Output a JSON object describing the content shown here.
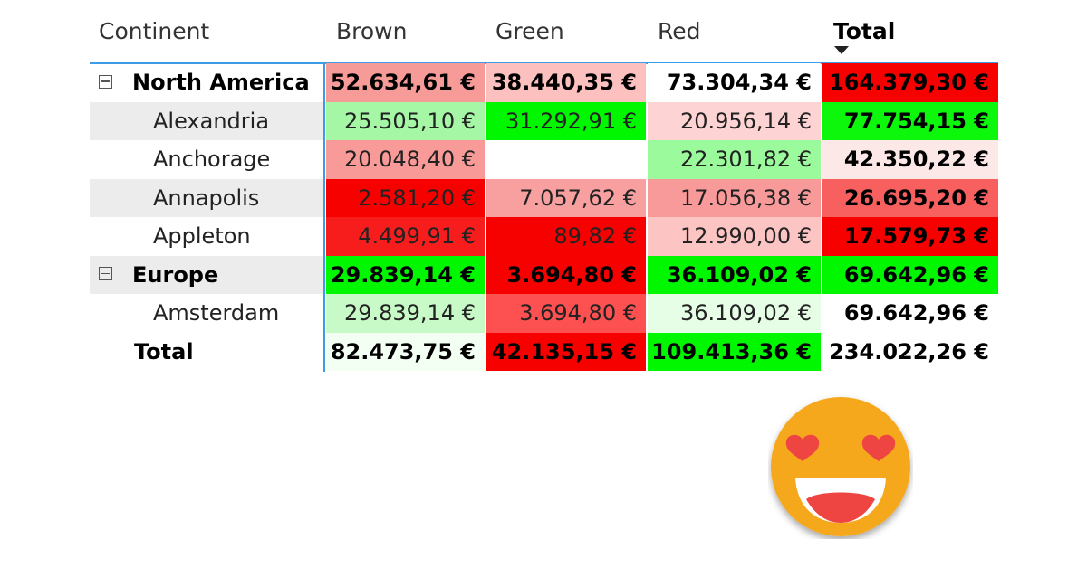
{
  "headers": {
    "continent": "Continent",
    "brown": "Brown",
    "green": "Green",
    "red": "Red",
    "total": "Total"
  },
  "rows": [
    {
      "label": "North America",
      "type": "group",
      "values": [
        "52.634,61 €",
        "38.440,35 €",
        "73.304,34 €",
        "164.379,30 €"
      ],
      "colors": [
        "#f79b99",
        "#fcc0bf",
        "#ffffff",
        "#f70000"
      ]
    },
    {
      "label": "Alexandria",
      "type": "child",
      "values": [
        "25.505,10 €",
        "31.292,91 €",
        "20.956,14 €",
        "77.754,15 €"
      ],
      "colors": [
        "#a5f7a5",
        "#00f700",
        "#fdd3d3",
        "#0df70d"
      ]
    },
    {
      "label": "Anchorage",
      "type": "child",
      "values": [
        "20.048,40 €",
        "",
        "22.301,82 €",
        "42.350,22 €"
      ],
      "colors": [
        "#f89a98",
        "#ffffff",
        "#9bfa9b",
        "#fde8e8"
      ]
    },
    {
      "label": "Annapolis",
      "type": "child",
      "values": [
        "2.581,20 €",
        "7.057,62 €",
        "17.056,38 €",
        "26.695,20 €"
      ],
      "colors": [
        "#f70000",
        "#f89f9f",
        "#f99a9a",
        "#f86060"
      ]
    },
    {
      "label": "Appleton",
      "type": "child",
      "values": [
        "4.499,91 €",
        "89,82 €",
        "12.990,00 €",
        "17.579,73 €"
      ],
      "colors": [
        "#f71d1d",
        "#f70000",
        "#fdc4c4",
        "#f70000"
      ]
    },
    {
      "label": "Europe",
      "type": "group",
      "values": [
        "29.839,14 €",
        "3.694,80 €",
        "36.109,02 €",
        "69.642,96 €"
      ],
      "colors": [
        "#00f700",
        "#f70000",
        "#00f700",
        "#00f700"
      ]
    },
    {
      "label": "Amsterdam",
      "type": "child",
      "values": [
        "29.839,14 €",
        "3.694,80 €",
        "36.109,02 €",
        "69.642,96 €"
      ],
      "colors": [
        "#c7fac7",
        "#fd5050",
        "#e6fde6",
        "#ffffff"
      ]
    },
    {
      "label": "Total",
      "type": "total",
      "values": [
        "82.473,75 €",
        "42.135,15 €",
        "109.413,36 €",
        "234.022,26 €"
      ],
      "colors": [
        "#f4fff4",
        "#f70000",
        "#00f700",
        "#ffffff"
      ]
    }
  ],
  "emoji": "heart-eyes-smile-icon"
}
